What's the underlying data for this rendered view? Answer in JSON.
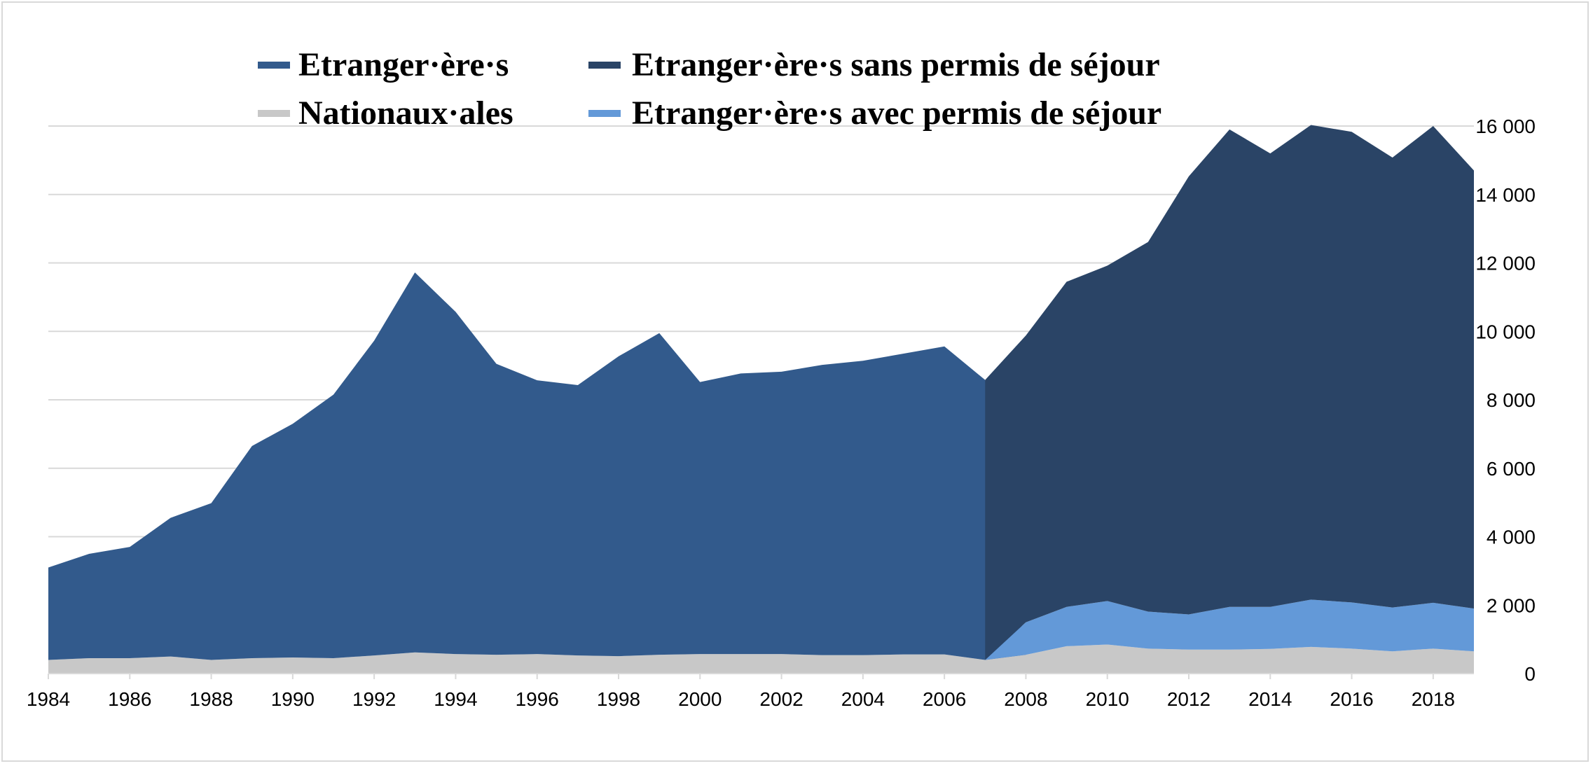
{
  "chart_data": {
    "type": "area",
    "title": "",
    "xlabel": "",
    "ylabel": "",
    "xlim": [
      1984,
      2019
    ],
    "ylim": [
      0,
      16000
    ],
    "grid": true,
    "legend_position": "top-left",
    "x": [
      1984,
      1985,
      1986,
      1987,
      1988,
      1989,
      1990,
      1991,
      1992,
      1993,
      1994,
      1995,
      1996,
      1997,
      1998,
      1999,
      2000,
      2001,
      2002,
      2003,
      2004,
      2005,
      2006,
      2007,
      2008,
      2009,
      2010,
      2011,
      2012,
      2013,
      2014,
      2015,
      2016,
      2017,
      2018,
      2019
    ],
    "x_ticks": [
      "1984",
      "1986",
      "1988",
      "1990",
      "1992",
      "1994",
      "1996",
      "1998",
      "2000",
      "2002",
      "2004",
      "2006",
      "2008",
      "2010",
      "2012",
      "2014",
      "2016",
      "2018"
    ],
    "y_ticks": [
      "0",
      "2 000",
      "4 000",
      "6 000",
      "8 000",
      "10 000",
      "12 000",
      "14 000",
      "16 000"
    ],
    "series": [
      {
        "name": "Nationaux·ales",
        "color": "#c8c8c8",
        "values": [
          400,
          450,
          450,
          500,
          400,
          450,
          470,
          450,
          530,
          620,
          570,
          550,
          570,
          530,
          510,
          550,
          570,
          570,
          570,
          540,
          540,
          560,
          560,
          400,
          550,
          800,
          850,
          730,
          700,
          700,
          720,
          780,
          730,
          650,
          730,
          650
        ]
      },
      {
        "name": "Etranger·ère·s",
        "color": "#325a8c",
        "values": [
          2700,
          3050,
          3250,
          4050,
          4580,
          6200,
          6830,
          7700,
          9200,
          11100,
          10000,
          8500,
          8000,
          7900,
          8760,
          9400,
          7950,
          8200,
          8250,
          8480,
          8600,
          8790,
          9000,
          8180,
          null,
          null,
          null,
          null,
          null,
          null,
          null,
          null,
          null,
          null,
          null,
          null
        ]
      },
      {
        "name": "Etranger·ère·s avec permis de séjour",
        "color": "#6399d8",
        "values": [
          null,
          null,
          null,
          null,
          null,
          null,
          null,
          null,
          null,
          null,
          null,
          null,
          null,
          null,
          null,
          null,
          null,
          null,
          null,
          null,
          null,
          null,
          null,
          0,
          950,
          1150,
          1270,
          1080,
          1030,
          1250,
          1230,
          1380,
          1350,
          1280,
          1340,
          1250
        ]
      },
      {
        "name": "Etranger·ère·s sans permis de séjour",
        "color": "#2a4466",
        "values": [
          null,
          null,
          null,
          null,
          null,
          null,
          null,
          null,
          null,
          null,
          null,
          null,
          null,
          null,
          null,
          null,
          null,
          null,
          null,
          null,
          null,
          null,
          null,
          8180,
          8380,
          9500,
          9800,
          10800,
          12800,
          13950,
          13250,
          13870,
          13750,
          13150,
          13930,
          12800
        ]
      }
    ]
  }
}
